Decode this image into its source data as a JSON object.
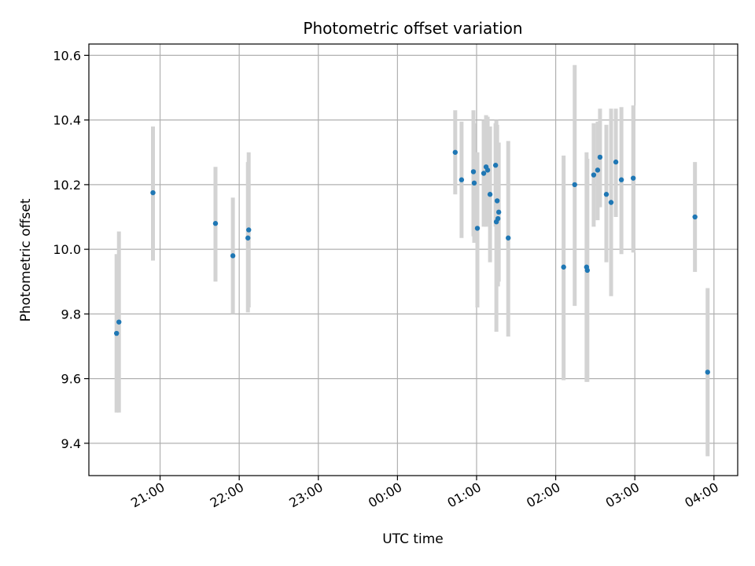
{
  "chart_data": {
    "type": "scatter",
    "title": "Photometric offset variation",
    "xlabel": "UTC time",
    "ylabel": "Photometric offset",
    "x_unit": "UTC hours from 00:00 (negative = previous day)",
    "xlim": [
      -3.9,
      4.3
    ],
    "ylim": [
      9.3,
      10.635
    ],
    "yticks": [
      9.4,
      9.6,
      9.8,
      10.0,
      10.2,
      10.4,
      10.6
    ],
    "ytick_labels": [
      "9.4",
      "9.6",
      "9.8",
      "10.0",
      "10.2",
      "10.4",
      "10.6"
    ],
    "xticks": [
      -3,
      -2,
      -1,
      0,
      1,
      2,
      3,
      4
    ],
    "xtick_labels": [
      "21:00",
      "22:00",
      "23:00",
      "00:00",
      "01:00",
      "02:00",
      "03:00",
      "04:00"
    ],
    "grid": true,
    "point_color": "#1f77b4",
    "errorbar_color": "#d3d3d3",
    "points": [
      {
        "x": -3.55,
        "y": 9.74,
        "ylow": 9.495,
        "yhigh": 9.985
      },
      {
        "x": -3.52,
        "y": 9.775,
        "ylow": 9.495,
        "yhigh": 10.055
      },
      {
        "x": -3.09,
        "y": 10.175,
        "ylow": 9.965,
        "yhigh": 10.38
      },
      {
        "x": -2.3,
        "y": 10.08,
        "ylow": 9.9,
        "yhigh": 10.255
      },
      {
        "x": -2.08,
        "y": 9.98,
        "ylow": 9.8,
        "yhigh": 10.16
      },
      {
        "x": -1.89,
        "y": 10.035,
        "ylow": 9.805,
        "yhigh": 10.27
      },
      {
        "x": -1.88,
        "y": 10.06,
        "ylow": 9.82,
        "yhigh": 10.3
      },
      {
        "x": 0.73,
        "y": 10.3,
        "ylow": 10.17,
        "yhigh": 10.43
      },
      {
        "x": 0.81,
        "y": 10.215,
        "ylow": 10.035,
        "yhigh": 10.395
      },
      {
        "x": 0.96,
        "y": 10.24,
        "ylow": 10.04,
        "yhigh": 10.43
      },
      {
        "x": 0.97,
        "y": 10.205,
        "ylow": 10.02,
        "yhigh": 10.39
      },
      {
        "x": 1.01,
        "y": 10.065,
        "ylow": 9.82,
        "yhigh": 10.3
      },
      {
        "x": 1.09,
        "y": 10.235,
        "ylow": 10.07,
        "yhigh": 10.4
      },
      {
        "x": 1.12,
        "y": 10.255,
        "ylow": 10.07,
        "yhigh": 10.415
      },
      {
        "x": 1.14,
        "y": 10.245,
        "ylow": 10.08,
        "yhigh": 10.41
      },
      {
        "x": 1.17,
        "y": 10.17,
        "ylow": 9.96,
        "yhigh": 10.38
      },
      {
        "x": 1.24,
        "y": 10.26,
        "ylow": 10.07,
        "yhigh": 10.39
      },
      {
        "x": 1.25,
        "y": 10.085,
        "ylow": 9.745,
        "yhigh": 10.4
      },
      {
        "x": 1.26,
        "y": 10.15,
        "ylow": 9.9,
        "yhigh": 10.385
      },
      {
        "x": 1.27,
        "y": 10.095,
        "ylow": 9.885,
        "yhigh": 10.3
      },
      {
        "x": 1.28,
        "y": 10.115,
        "ylow": 9.9,
        "yhigh": 10.33
      },
      {
        "x": 1.4,
        "y": 10.035,
        "ylow": 9.73,
        "yhigh": 10.335
      },
      {
        "x": 2.1,
        "y": 9.945,
        "ylow": 9.595,
        "yhigh": 10.29
      },
      {
        "x": 2.24,
        "y": 10.2,
        "ylow": 9.825,
        "yhigh": 10.57
      },
      {
        "x": 2.39,
        "y": 9.945,
        "ylow": 9.59,
        "yhigh": 10.3
      },
      {
        "x": 2.4,
        "y": 9.935,
        "ylow": 9.59,
        "yhigh": 10.28
      },
      {
        "x": 2.48,
        "y": 10.23,
        "ylow": 10.07,
        "yhigh": 10.39
      },
      {
        "x": 2.53,
        "y": 10.245,
        "ylow": 10.09,
        "yhigh": 10.395
      },
      {
        "x": 2.56,
        "y": 10.285,
        "ylow": 10.13,
        "yhigh": 10.435
      },
      {
        "x": 2.64,
        "y": 10.17,
        "ylow": 9.96,
        "yhigh": 10.385
      },
      {
        "x": 2.7,
        "y": 10.145,
        "ylow": 9.855,
        "yhigh": 10.435
      },
      {
        "x": 2.76,
        "y": 10.27,
        "ylow": 10.1,
        "yhigh": 10.435
      },
      {
        "x": 2.83,
        "y": 10.215,
        "ylow": 9.985,
        "yhigh": 10.44
      },
      {
        "x": 2.98,
        "y": 10.22,
        "ylow": 9.99,
        "yhigh": 10.445
      },
      {
        "x": 3.76,
        "y": 10.1,
        "ylow": 9.93,
        "yhigh": 10.27
      },
      {
        "x": 3.92,
        "y": 9.62,
        "ylow": 9.36,
        "yhigh": 9.88
      }
    ]
  }
}
